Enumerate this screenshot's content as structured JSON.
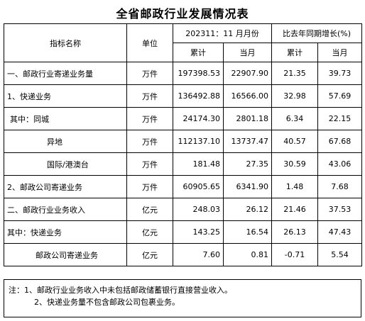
{
  "title": "全省邮政行业发展情况表",
  "header": {
    "indicator": "指标名称",
    "unit": "单位",
    "period": "202311：11 月月份",
    "growth": "比去年同期增长(%)",
    "cum": "累计",
    "month": "当月",
    "cum2": "累计",
    "month2": "当月"
  },
  "rows": [
    {
      "name": "一、邮政行业寄递业务量",
      "unit": "万件",
      "cum": "197398.53",
      "month": "22907.90",
      "g_cum": "21.35",
      "g_month": "39.73"
    },
    {
      "name": "1、快递业务",
      "unit": "万件",
      "cum": "136492.88",
      "month": "16566.00",
      "g_cum": "32.98",
      "g_month": "57.69"
    },
    {
      "name": "其中：同城",
      "unit": "万件",
      "cum": "24174.30",
      "month": "2801.18",
      "g_cum": "6.34",
      "g_month": "22.15"
    },
    {
      "name": "异地",
      "unit": "万件",
      "cum": "112137.10",
      "month": "13737.47",
      "g_cum": "40.57",
      "g_month": "67.68"
    },
    {
      "name": "国际/港澳台",
      "unit": "万件",
      "cum": "181.48",
      "month": "27.35",
      "g_cum": "30.59",
      "g_month": "43.06"
    },
    {
      "name": "2、邮政公司寄递业务",
      "unit": "万件",
      "cum": "60905.65",
      "month": "6341.90",
      "g_cum": "1.48",
      "g_month": "7.68"
    },
    {
      "name": "二、邮政行业业务收入",
      "unit": "亿元",
      "cum": "248.03",
      "month": "26.12",
      "g_cum": "21.46",
      "g_month": "37.53"
    },
    {
      "name": "其中：快递业务",
      "unit": "亿元",
      "cum": "143.25",
      "month": "16.54",
      "g_cum": "26.13",
      "g_month": "47.43"
    },
    {
      "name": "邮政公司寄递业务",
      "unit": "亿元",
      "cum": "7.60",
      "month": "0.81",
      "g_cum": "-0.71",
      "g_month": "5.54"
    }
  ],
  "notes": {
    "line1": "注：1、邮政行业业务收入中未包括邮政储蓄银行直接营业收入。",
    "line2": "2、快递业务量不包含邮政公司包裹业务。"
  }
}
